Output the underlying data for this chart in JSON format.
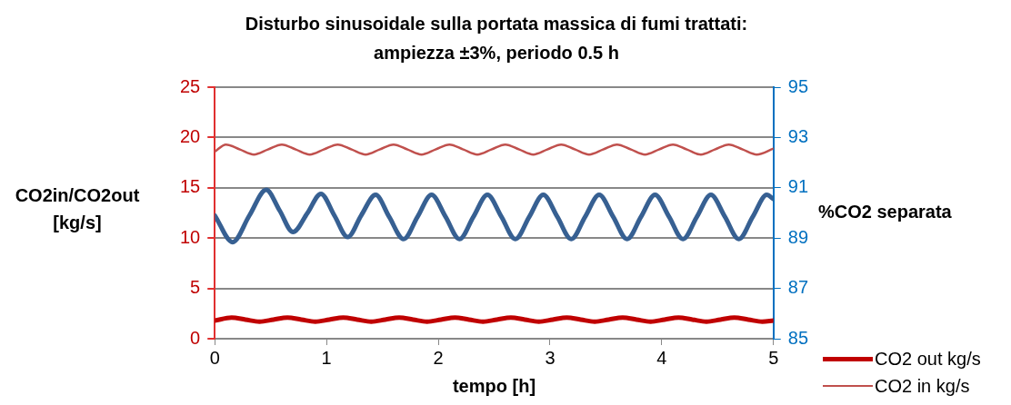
{
  "chart_data": {
    "type": "line",
    "title": "Disturbo sinusoidale sulla portata massica di fumi trattati: ampiezza ±3%, periodo 0.5 h",
    "xlabel": "tempo [h]",
    "ylabel": "CO2in/CO2out [kg/s]",
    "y2label": "%CO2 separata",
    "xlim": [
      0,
      5
    ],
    "xticks": [
      0,
      1,
      2,
      3,
      4,
      5
    ],
    "ylim": [
      0,
      25
    ],
    "yticks": [
      0,
      5,
      10,
      15,
      20,
      25
    ],
    "y2lim": [
      85,
      95
    ],
    "y2ticks": [
      85,
      87,
      89,
      91,
      93,
      95
    ],
    "grid": "y",
    "legend": "bottom right",
    "series": [
      {
        "color": "#376092",
        "axis": "y2",
        "x": [
          0,
          0.16,
          0.31,
          0.46,
          0.58,
          0.7,
          0.83,
          0.95,
          1.07,
          1.19,
          1.31,
          1.44,
          1.56,
          1.69,
          1.815,
          1.94,
          2.065,
          2.19,
          2.315,
          2.44,
          2.565,
          2.69,
          2.815,
          2.94,
          3.065,
          3.19,
          3.315,
          3.44,
          3.565,
          3.69,
          3.815,
          3.94,
          4.065,
          4.19,
          4.315,
          4.44,
          4.565,
          4.69,
          4.815,
          4.94,
          5
        ],
        "values": [
          89.9,
          88.84,
          89.9,
          90.92,
          90.1,
          89.24,
          90.0,
          90.76,
          89.9,
          89.04,
          89.9,
          90.72,
          89.85,
          88.96,
          89.85,
          90.72,
          89.85,
          88.96,
          89.85,
          90.72,
          89.85,
          88.96,
          89.85,
          90.72,
          89.85,
          88.96,
          89.85,
          90.72,
          89.85,
          88.96,
          89.85,
          90.72,
          89.85,
          88.96,
          89.85,
          90.72,
          89.85,
          88.96,
          89.85,
          90.72,
          90.55
        ]
      },
      {
        "name": "CO2 out kg/s",
        "color": "#c00000",
        "x": [
          0,
          0.15,
          0.275,
          0.4,
          0.525,
          0.65,
          0.775,
          0.9,
          1.025,
          1.15,
          1.275,
          1.4,
          1.525,
          1.65,
          1.775,
          1.9,
          2.025,
          2.15,
          2.275,
          2.4,
          2.525,
          2.65,
          2.775,
          2.9,
          3.025,
          3.15,
          3.275,
          3.4,
          3.525,
          3.65,
          3.775,
          3.9,
          4.025,
          4.15,
          4.275,
          4.4,
          4.525,
          4.65,
          4.775,
          4.9,
          5
        ],
        "values": [
          1.8,
          2.1,
          1.9,
          1.7,
          1.9,
          2.1,
          1.9,
          1.7,
          1.9,
          2.1,
          1.9,
          1.7,
          1.9,
          2.1,
          1.9,
          1.7,
          1.9,
          2.1,
          1.9,
          1.7,
          1.9,
          2.1,
          1.9,
          1.7,
          1.9,
          2.1,
          1.9,
          1.7,
          1.9,
          2.1,
          1.9,
          1.7,
          1.9,
          2.1,
          1.9,
          1.7,
          1.9,
          2.1,
          1.9,
          1.7,
          1.8
        ]
      },
      {
        "name": "CO2 in kg/s",
        "color": "#c0504d",
        "x": [
          0,
          0.1,
          0.225,
          0.35,
          0.475,
          0.6,
          0.725,
          0.85,
          0.975,
          1.1,
          1.225,
          1.35,
          1.475,
          1.6,
          1.725,
          1.85,
          1.975,
          2.1,
          2.225,
          2.35,
          2.475,
          2.6,
          2.725,
          2.85,
          2.975,
          3.1,
          3.225,
          3.35,
          3.475,
          3.6,
          3.725,
          3.85,
          3.975,
          4.1,
          4.225,
          4.35,
          4.475,
          4.6,
          4.725,
          4.85,
          5
        ],
        "values": [
          18.6,
          19.3,
          18.8,
          18.3,
          18.8,
          19.3,
          18.8,
          18.3,
          18.8,
          19.3,
          18.8,
          18.3,
          18.8,
          19.3,
          18.8,
          18.3,
          18.8,
          19.3,
          18.8,
          18.3,
          18.8,
          19.3,
          18.8,
          18.3,
          18.8,
          19.3,
          18.8,
          18.3,
          18.8,
          19.3,
          18.8,
          18.3,
          18.8,
          19.3,
          18.8,
          18.3,
          18.8,
          19.3,
          18.8,
          18.3,
          18.9
        ]
      }
    ]
  }
}
